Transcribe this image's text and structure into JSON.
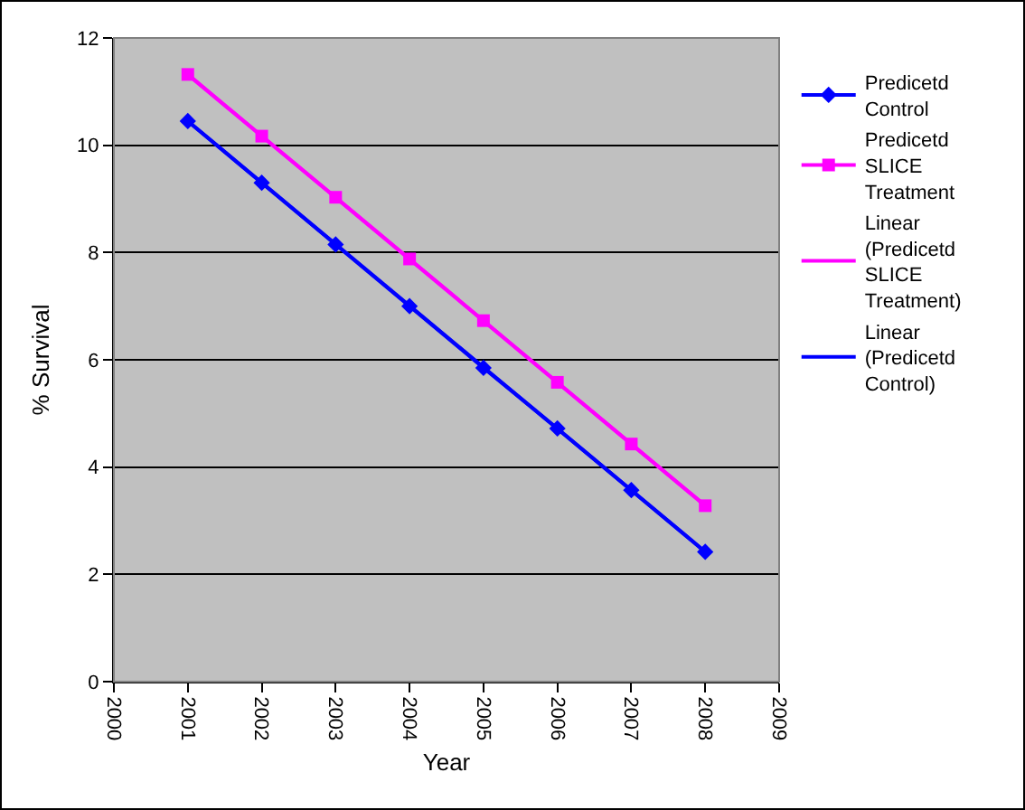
{
  "chart_data": {
    "type": "line",
    "xlabel": "Year",
    "ylabel": "% Survival",
    "xlim": [
      2000,
      2009
    ],
    "xticks": [
      2000,
      2001,
      2002,
      2003,
      2004,
      2005,
      2006,
      2007,
      2008,
      2009
    ],
    "ylim": [
      0,
      12
    ],
    "yticks": [
      0,
      2,
      4,
      6,
      8,
      10,
      12
    ],
    "grid": "y",
    "legend": "right",
    "series": [
      {
        "name": "Predicetd Control",
        "color": "#0000ff",
        "marker": "diamond",
        "x": [
          2001,
          2002,
          2003,
          2004,
          2005,
          2006,
          2007,
          2008
        ],
        "values": [
          10.45,
          9.3,
          8.15,
          7.0,
          5.85,
          4.72,
          3.57,
          2.42
        ]
      },
      {
        "name": "Predicetd SLICE Treatment",
        "color": "#ff00ff",
        "marker": "square",
        "x": [
          2001,
          2002,
          2003,
          2004,
          2005,
          2006,
          2007,
          2008
        ],
        "values": [
          11.32,
          10.17,
          9.03,
          7.88,
          6.73,
          5.58,
          4.43,
          3.28
        ]
      },
      {
        "name": "Linear (Predicetd SLICE Treatment)",
        "color": "#ff00ff",
        "marker": "none",
        "x": [
          2001,
          2008
        ],
        "values": [
          11.32,
          3.28
        ]
      },
      {
        "name": "Linear (Predicetd Control)",
        "color": "#0000ff",
        "marker": "none",
        "x": [
          2001,
          2008
        ],
        "values": [
          10.45,
          2.42
        ]
      }
    ]
  }
}
